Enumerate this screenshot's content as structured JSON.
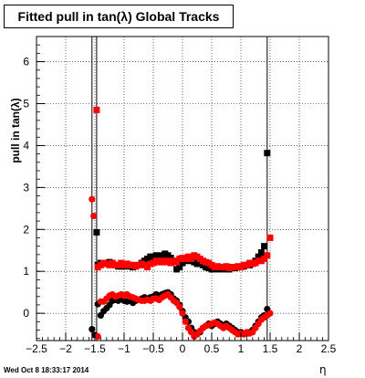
{
  "title": "Fitted pull in tan(λ)  Global Tracks",
  "timestamp": "Wed Oct  8 18:33:17 2014",
  "chart_data": {
    "type": "scatter",
    "title": "Fitted pull in tan(λ)  Global Tracks",
    "xlabel": "η",
    "ylabel": "pull in tan(λ)",
    "xlim": [
      -2.5,
      2.5
    ],
    "ylim": [
      -0.65,
      6.6
    ],
    "x_ticks": [
      "−2.5",
      "−2",
      "−1.5",
      "−1",
      "−0.5",
      "0",
      "0.5",
      "1",
      "1.5",
      "2",
      "2.5"
    ],
    "y_ticks": [
      "0",
      "1",
      "2",
      "3",
      "4",
      "5",
      "6"
    ],
    "grid": true,
    "vertical_lines": [
      -1.55,
      -1.47,
      1.45
    ],
    "series": [
      {
        "marker": "square",
        "role": "sigma",
        "color": "#000000",
        "points": [
          [
            -1.47,
            1.93
          ],
          [
            -1.45,
            1.15
          ],
          [
            -1.4,
            1.2
          ],
          [
            -1.35,
            1.2
          ],
          [
            -1.3,
            1.18
          ],
          [
            -1.25,
            1.22
          ],
          [
            -1.2,
            1.2
          ],
          [
            -1.15,
            1.15
          ],
          [
            -1.1,
            1.12
          ],
          [
            -1.05,
            1.12
          ],
          [
            -1.0,
            1.12
          ],
          [
            -0.95,
            1.15
          ],
          [
            -0.9,
            1.12
          ],
          [
            -0.85,
            1.1
          ],
          [
            -0.8,
            1.12
          ],
          [
            -0.75,
            1.15
          ],
          [
            -0.7,
            1.2
          ],
          [
            -0.65,
            1.25
          ],
          [
            -0.6,
            1.3
          ],
          [
            -0.55,
            1.35
          ],
          [
            -0.5,
            1.35
          ],
          [
            -0.45,
            1.38
          ],
          [
            -0.4,
            1.3
          ],
          [
            -0.35,
            1.38
          ],
          [
            -0.3,
            1.42
          ],
          [
            -0.25,
            1.38
          ],
          [
            -0.2,
            1.32
          ],
          [
            -0.15,
            1.25
          ],
          [
            -0.1,
            1.05
          ],
          [
            -0.05,
            1.1
          ],
          [
            0.0,
            1.2
          ],
          [
            0.05,
            1.25
          ],
          [
            0.1,
            1.3
          ],
          [
            0.15,
            1.25
          ],
          [
            0.2,
            1.22
          ],
          [
            0.25,
            1.18
          ],
          [
            0.3,
            1.2
          ],
          [
            0.35,
            1.15
          ],
          [
            0.4,
            1.1
          ],
          [
            0.45,
            1.08
          ],
          [
            0.5,
            1.05
          ],
          [
            0.55,
            1.08
          ],
          [
            0.6,
            1.05
          ],
          [
            0.65,
            1.1
          ],
          [
            0.7,
            1.05
          ],
          [
            0.75,
            1.08
          ],
          [
            0.8,
            1.05
          ],
          [
            0.85,
            1.1
          ],
          [
            0.9,
            1.08
          ],
          [
            0.95,
            1.1
          ],
          [
            1.0,
            1.1
          ],
          [
            1.05,
            1.12
          ],
          [
            1.1,
            1.15
          ],
          [
            1.15,
            1.15
          ],
          [
            1.2,
            1.2
          ],
          [
            1.25,
            1.25
          ],
          [
            1.3,
            1.35
          ],
          [
            1.35,
            1.45
          ],
          [
            1.4,
            1.6
          ],
          [
            1.45,
            3.82
          ]
        ]
      },
      {
        "marker": "square",
        "role": "sigma",
        "color": "#ff0000",
        "points": [
          [
            -1.47,
            4.85
          ],
          [
            -1.45,
            1.1
          ],
          [
            -1.4,
            1.15
          ],
          [
            -1.35,
            1.2
          ],
          [
            -1.3,
            1.18
          ],
          [
            -1.25,
            1.15
          ],
          [
            -1.2,
            1.2
          ],
          [
            -1.15,
            1.15
          ],
          [
            -1.1,
            1.15
          ],
          [
            -1.05,
            1.2
          ],
          [
            -1.0,
            1.15
          ],
          [
            -0.95,
            1.18
          ],
          [
            -0.9,
            1.15
          ],
          [
            -0.85,
            1.15
          ],
          [
            -0.8,
            1.12
          ],
          [
            -0.75,
            1.15
          ],
          [
            -0.7,
            1.18
          ],
          [
            -0.65,
            1.15
          ],
          [
            -0.6,
            1.1
          ],
          [
            -0.55,
            1.18
          ],
          [
            -0.5,
            1.2
          ],
          [
            -0.45,
            1.25
          ],
          [
            -0.4,
            1.22
          ],
          [
            -0.35,
            1.25
          ],
          [
            -0.3,
            1.22
          ],
          [
            -0.25,
            1.25
          ],
          [
            -0.2,
            1.2
          ],
          [
            -0.15,
            1.25
          ],
          [
            -0.1,
            1.22
          ],
          [
            -0.05,
            1.3
          ],
          [
            0.0,
            1.32
          ],
          [
            0.05,
            1.3
          ],
          [
            0.1,
            1.35
          ],
          [
            0.15,
            1.3
          ],
          [
            0.2,
            1.38
          ],
          [
            0.25,
            1.35
          ],
          [
            0.3,
            1.3
          ],
          [
            0.35,
            1.25
          ],
          [
            0.4,
            1.22
          ],
          [
            0.45,
            1.2
          ],
          [
            0.5,
            1.15
          ],
          [
            0.55,
            1.1
          ],
          [
            0.6,
            1.12
          ],
          [
            0.65,
            1.1
          ],
          [
            0.7,
            1.1
          ],
          [
            0.75,
            1.12
          ],
          [
            0.8,
            1.08
          ],
          [
            0.85,
            1.1
          ],
          [
            0.9,
            1.1
          ],
          [
            0.95,
            1.12
          ],
          [
            1.0,
            1.1
          ],
          [
            1.05,
            1.15
          ],
          [
            1.1,
            1.15
          ],
          [
            1.15,
            1.2
          ],
          [
            1.2,
            1.18
          ],
          [
            1.25,
            1.2
          ],
          [
            1.3,
            1.25
          ],
          [
            1.35,
            1.25
          ],
          [
            1.4,
            1.3
          ],
          [
            1.45,
            1.38
          ],
          [
            1.5,
            1.8
          ]
        ]
      },
      {
        "marker": "circle",
        "role": "mean",
        "color": "#000000",
        "points": [
          [
            -1.55,
            -0.38
          ],
          [
            -1.5,
            -0.52
          ],
          [
            -1.45,
            0.22
          ],
          [
            -1.4,
            -0.05
          ],
          [
            -1.35,
            0.05
          ],
          [
            -1.3,
            0.12
          ],
          [
            -1.25,
            0.2
          ],
          [
            -1.2,
            0.3
          ],
          [
            -1.15,
            0.32
          ],
          [
            -1.1,
            0.3
          ],
          [
            -1.05,
            0.35
          ],
          [
            -1.0,
            0.3
          ],
          [
            -0.95,
            0.28
          ],
          [
            -0.9,
            0.3
          ],
          [
            -0.85,
            0.25
          ],
          [
            -0.8,
            0.3
          ],
          [
            -0.75,
            0.32
          ],
          [
            -0.7,
            0.35
          ],
          [
            -0.65,
            0.38
          ],
          [
            -0.6,
            0.35
          ],
          [
            -0.55,
            0.38
          ],
          [
            -0.5,
            0.4
          ],
          [
            -0.45,
            0.45
          ],
          [
            -0.4,
            0.42
          ],
          [
            -0.35,
            0.45
          ],
          [
            -0.3,
            0.48
          ],
          [
            -0.25,
            0.5
          ],
          [
            -0.2,
            0.45
          ],
          [
            -0.15,
            0.35
          ],
          [
            -0.1,
            0.3
          ],
          [
            -0.05,
            0.2
          ],
          [
            0.0,
            0.05
          ],
          [
            0.05,
            -0.1
          ],
          [
            0.1,
            -0.2
          ],
          [
            0.15,
            -0.35
          ],
          [
            0.2,
            -0.45
          ],
          [
            0.25,
            -0.5
          ],
          [
            0.3,
            -0.45
          ],
          [
            0.35,
            -0.35
          ],
          [
            0.4,
            -0.3
          ],
          [
            0.45,
            -0.25
          ],
          [
            0.5,
            -0.3
          ],
          [
            0.55,
            -0.25
          ],
          [
            0.6,
            -0.2
          ],
          [
            0.65,
            -0.25
          ],
          [
            0.7,
            -0.3
          ],
          [
            0.75,
            -0.25
          ],
          [
            0.8,
            -0.3
          ],
          [
            0.85,
            -0.35
          ],
          [
            0.9,
            -0.4
          ],
          [
            0.95,
            -0.45
          ],
          [
            1.0,
            -0.45
          ],
          [
            1.05,
            -0.5
          ],
          [
            1.1,
            -0.48
          ],
          [
            1.15,
            -0.45
          ],
          [
            1.2,
            -0.4
          ],
          [
            1.25,
            -0.3
          ],
          [
            1.3,
            -0.2
          ],
          [
            1.35,
            -0.1
          ],
          [
            1.4,
            -0.05
          ],
          [
            1.45,
            0.1
          ]
        ]
      },
      {
        "marker": "circle",
        "role": "mean",
        "color": "#ff0000",
        "points": [
          [
            -1.55,
            2.72
          ],
          [
            -1.52,
            2.32
          ],
          [
            -1.45,
            -0.55
          ],
          [
            -1.4,
            0.28
          ],
          [
            -1.35,
            0.28
          ],
          [
            -1.3,
            0.35
          ],
          [
            -1.25,
            0.42
          ],
          [
            -1.2,
            0.45
          ],
          [
            -1.15,
            0.4
          ],
          [
            -1.1,
            0.42
          ],
          [
            -1.05,
            0.45
          ],
          [
            -1.0,
            0.42
          ],
          [
            -0.95,
            0.45
          ],
          [
            -0.9,
            0.4
          ],
          [
            -0.85,
            0.38
          ],
          [
            -0.8,
            0.35
          ],
          [
            -0.75,
            0.32
          ],
          [
            -0.7,
            0.3
          ],
          [
            -0.65,
            0.3
          ],
          [
            -0.6,
            0.32
          ],
          [
            -0.55,
            0.3
          ],
          [
            -0.5,
            0.35
          ],
          [
            -0.45,
            0.35
          ],
          [
            -0.4,
            0.32
          ],
          [
            -0.35,
            0.38
          ],
          [
            -0.3,
            0.42
          ],
          [
            -0.25,
            0.45
          ],
          [
            -0.2,
            0.38
          ],
          [
            -0.15,
            0.3
          ],
          [
            -0.1,
            0.25
          ],
          [
            -0.05,
            0.15
          ],
          [
            0.0,
            0.0
          ],
          [
            0.05,
            -0.2
          ],
          [
            0.1,
            -0.35
          ],
          [
            0.15,
            -0.45
          ],
          [
            0.2,
            -0.55
          ],
          [
            0.25,
            -0.5
          ],
          [
            0.3,
            -0.42
          ],
          [
            0.35,
            -0.35
          ],
          [
            0.4,
            -0.3
          ],
          [
            0.45,
            -0.28
          ],
          [
            0.5,
            -0.25
          ],
          [
            0.55,
            -0.22
          ],
          [
            0.6,
            -0.25
          ],
          [
            0.65,
            -0.3
          ],
          [
            0.7,
            -0.35
          ],
          [
            0.75,
            -0.3
          ],
          [
            0.8,
            -0.35
          ],
          [
            0.85,
            -0.4
          ],
          [
            0.9,
            -0.45
          ],
          [
            0.95,
            -0.5
          ],
          [
            1.0,
            -0.48
          ],
          [
            1.05,
            -0.5
          ],
          [
            1.1,
            -0.45
          ],
          [
            1.15,
            -0.48
          ],
          [
            1.2,
            -0.45
          ],
          [
            1.25,
            -0.35
          ],
          [
            1.3,
            -0.25
          ],
          [
            1.35,
            -0.15
          ],
          [
            1.4,
            -0.1
          ],
          [
            1.45,
            -0.05
          ],
          [
            1.5,
            0.0
          ]
        ]
      }
    ]
  }
}
